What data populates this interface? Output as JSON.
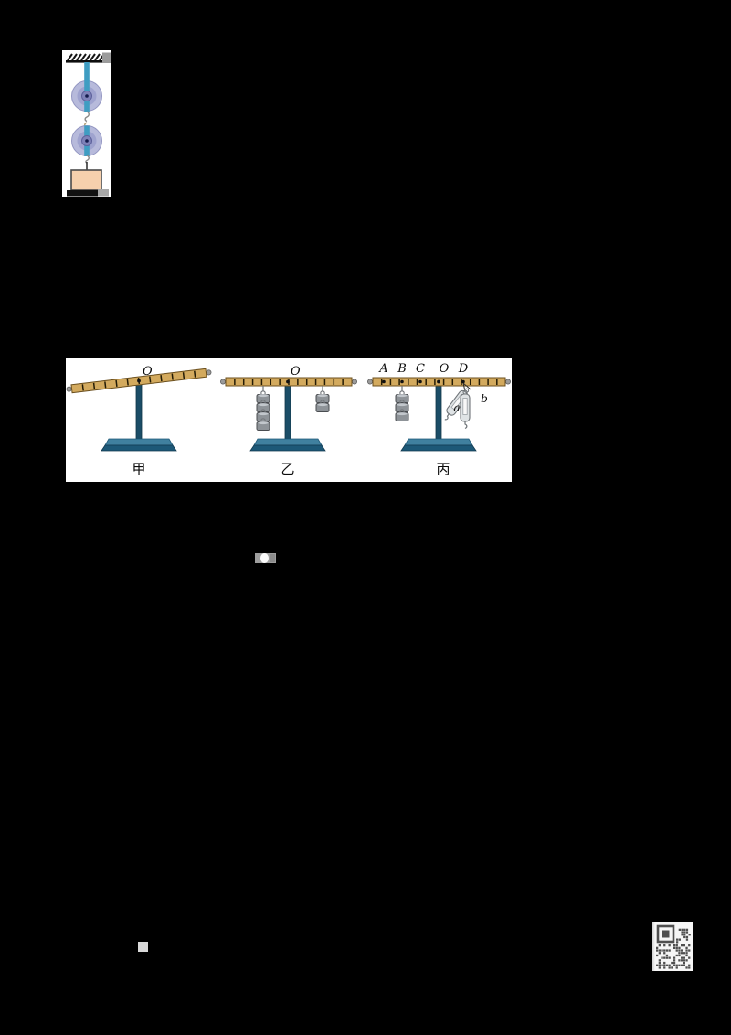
{
  "page": {
    "background_color": "#000000"
  },
  "pulley_figure": {
    "colors": {
      "strap": "#3f9dc2",
      "wheel": "#b7badb",
      "hub": "#7e82b8",
      "block": "#f6d0ad",
      "metal": "#9b9b9b",
      "ceiling": "#0d0d0d"
    }
  },
  "lever_figure": {
    "colors": {
      "beam": "#d3aa5e",
      "beam_edge": "#6b4f1d",
      "stand": "#1b4d67",
      "base_top": "#40809f",
      "base_front": "#1d5877",
      "weight": "#8e9398",
      "scale_body": "#dfe3e5"
    },
    "setups": [
      {
        "caption": "甲",
        "pivot_label": "O"
      },
      {
        "caption": "乙",
        "pivot_label": "O",
        "left_weight_count": 4,
        "right_weight_count": 2
      },
      {
        "caption": "丙",
        "point_labels": {
          "A": "A",
          "B": "B",
          "C": "C",
          "O": "O",
          "D": "D"
        },
        "scale_labels": {
          "a": "a",
          "b": "b"
        },
        "weights_at_B": 3
      }
    ]
  },
  "qr": {
    "module_color": "#4f4f4f",
    "background": "#f6f6f6"
  }
}
